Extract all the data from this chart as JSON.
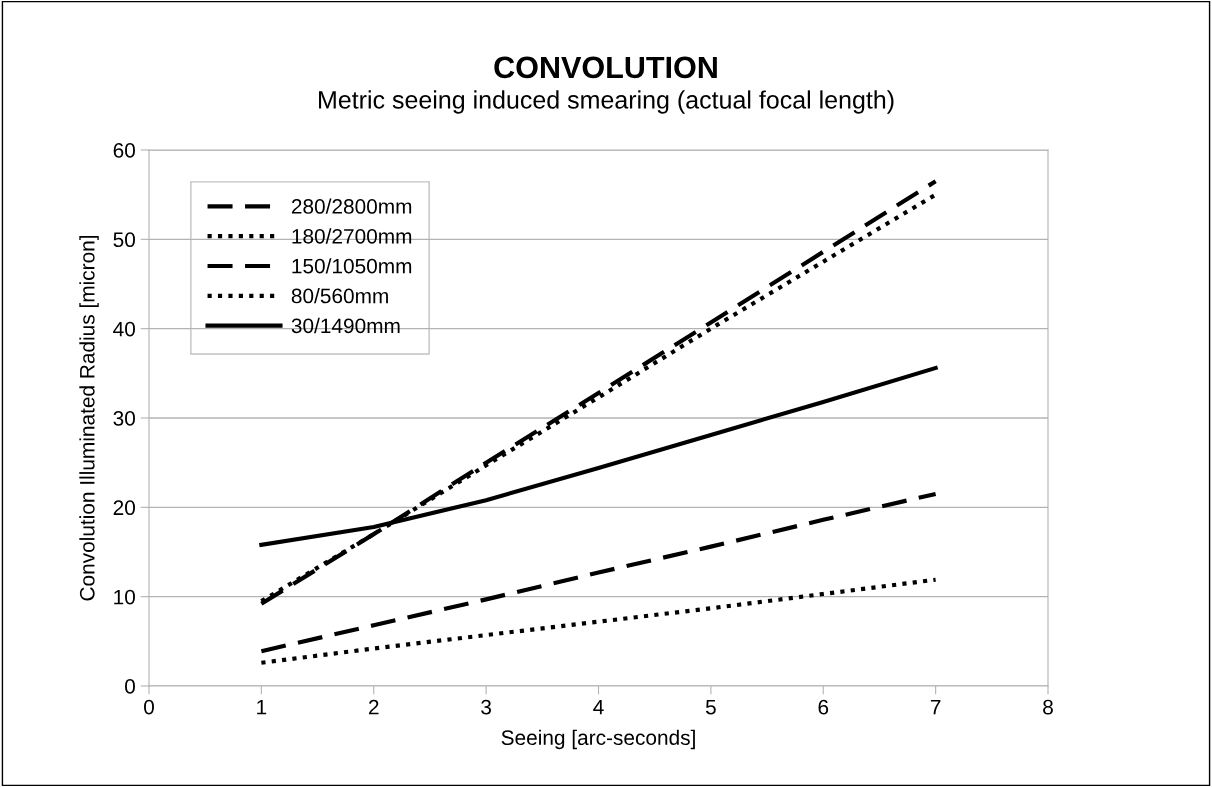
{
  "chart_data": {
    "type": "line",
    "title": "CONVOLUTION",
    "subtitle": "Metric seeing induced smearing (actual focal length)",
    "xlabel": "Seeing [arc-seconds]",
    "ylabel": "Convolution Illuminated Radius [micron]",
    "x": [
      1,
      2,
      3,
      4,
      5,
      6,
      7
    ],
    "series": [
      {
        "name": "280/2800mm",
        "color": "#000000",
        "line_style": "dashed",
        "values": [
          9.2,
          17.0,
          25.0,
          32.8,
          40.7,
          48.6,
          56.5
        ]
      },
      {
        "name": "180/2700mm",
        "color": "#000000",
        "line_style": "dotted",
        "values": [
          9.5,
          17.0,
          24.7,
          32.3,
          40.0,
          47.5,
          55.0
        ]
      },
      {
        "name": "150/1050mm",
        "color": "#000000",
        "line_style": "dashed",
        "values": [
          3.9,
          6.8,
          9.7,
          12.7,
          15.6,
          18.6,
          21.5
        ]
      },
      {
        "name": "80/560mm",
        "color": "#000000",
        "line_style": "dotted",
        "values": [
          2.6,
          4.2,
          5.7,
          7.2,
          8.7,
          10.3,
          11.9
        ]
      },
      {
        "name": "30/1490mm",
        "color": "#000000",
        "line_style": "solid",
        "values": [
          15.8,
          17.8,
          20.8,
          24.4,
          28.1,
          31.8,
          35.6
        ]
      }
    ],
    "xlim": [
      0,
      8
    ],
    "xticks": [
      0,
      1,
      2,
      3,
      4,
      5,
      6,
      7,
      8
    ],
    "ylim": [
      0,
      60
    ],
    "yticks": [
      0,
      10,
      20,
      30,
      40,
      50,
      60
    ],
    "grid": "y",
    "legend": "top left",
    "marker": "none"
  }
}
